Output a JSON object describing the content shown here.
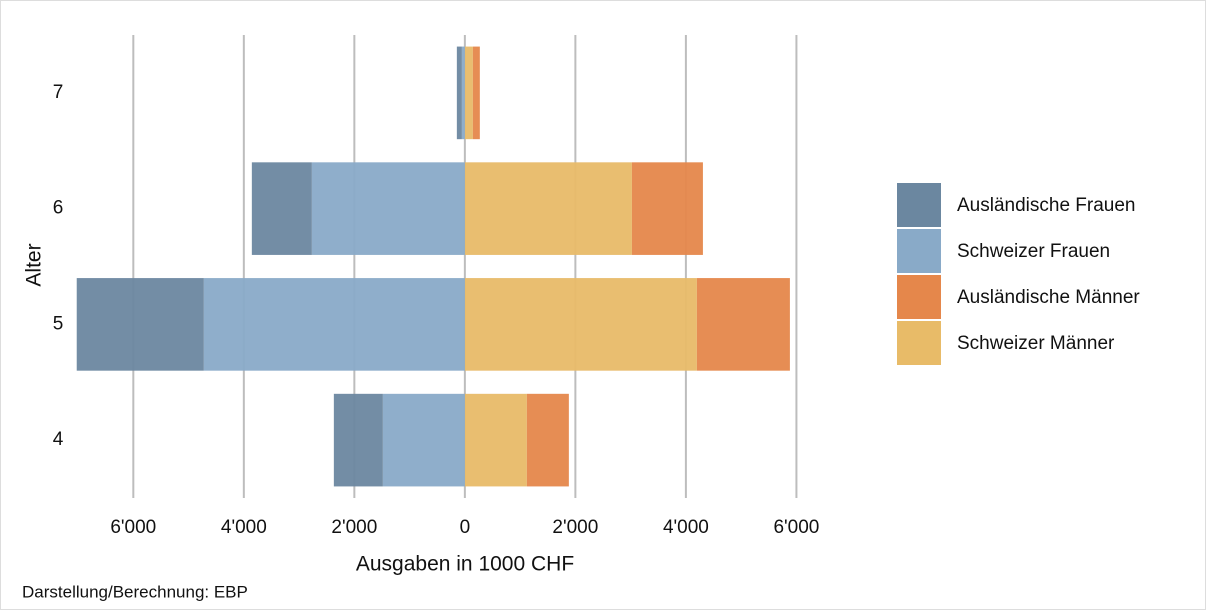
{
  "chart_data": {
    "type": "bar",
    "orientation": "horizontal",
    "stacked": true,
    "x_label": "Ausgaben in 1000 CHF",
    "y_label": "Alter",
    "caption": "Darstellung/Berechnung: EBP",
    "categories": [
      "4",
      "5",
      "6",
      "7"
    ],
    "series": [
      {
        "name": "Ausländische Frauen",
        "color": "#6b87a0",
        "values": [
          -887,
          -2300,
          -1086,
          -91
        ]
      },
      {
        "name": "Schweizer Frauen",
        "color": "#89aac8",
        "values": [
          -1484,
          -4724,
          -2769,
          -54
        ]
      },
      {
        "name": "Ausländische Männer",
        "color": "#e5874b",
        "values": [
          760,
          1683,
          1285,
          126
        ]
      },
      {
        "name": "Schweizer Männer",
        "color": "#e8bb68",
        "values": [
          1122,
          4199,
          3023,
          145
        ]
      }
    ],
    "xlim": [
      -7200,
      6300
    ],
    "xticks": [
      {
        "value": -6000,
        "label": "6'000"
      },
      {
        "value": -4000,
        "label": "4'000"
      },
      {
        "value": -2000,
        "label": "2'000"
      },
      0,
      {
        "value": 2000,
        "label": "2'000"
      },
      {
        "value": 4000,
        "label": "4'000"
      },
      {
        "value": 6000,
        "label": "6'000"
      }
    ],
    "grid": true,
    "legend": "right"
  }
}
